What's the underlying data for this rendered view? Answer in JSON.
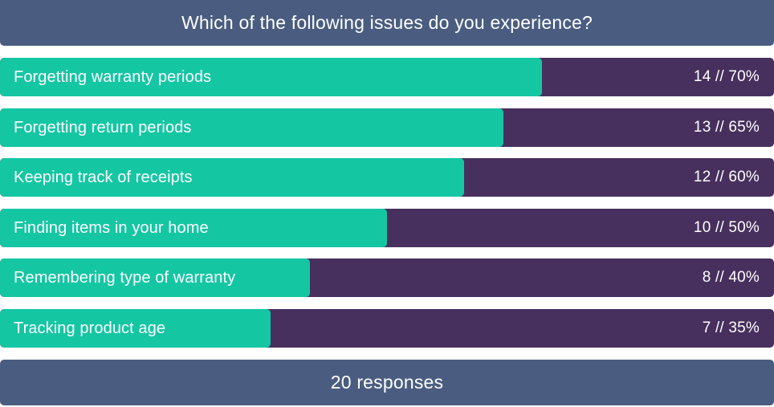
{
  "colors": {
    "header_bg": "#4a5d80",
    "track_bg": "#48305e",
    "fill": "#15c6a3",
    "text": "#ffffff"
  },
  "chart_data": {
    "type": "bar",
    "orientation": "horizontal",
    "title": "Which of the following issues do you experience?",
    "footer": "20 responses",
    "total_responses": 20,
    "xlim": [
      0,
      100
    ],
    "categories": [
      "Forgetting warranty periods",
      "Forgetting return periods",
      "Keeping track of receipts",
      "Finding items in your home",
      "Remembering type of warranty",
      "Tracking product age"
    ],
    "counts": [
      14,
      13,
      12,
      10,
      8,
      7
    ],
    "percents": [
      70,
      65,
      60,
      50,
      40,
      35
    ],
    "value_labels": [
      "14 // 70%",
      "13 // 65%",
      "12 // 60%",
      "10 // 50%",
      "8 // 40%",
      "7 // 35%"
    ]
  }
}
